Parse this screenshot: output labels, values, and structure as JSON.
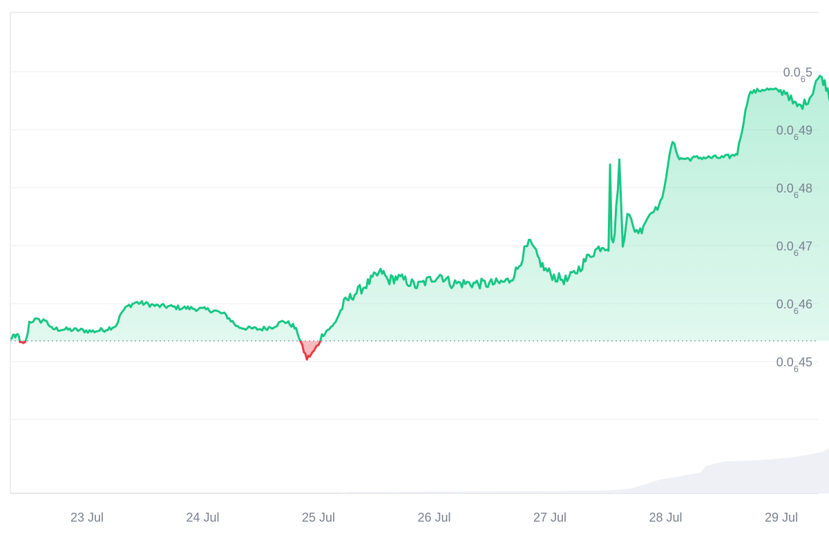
{
  "chart_data": {
    "type": "area",
    "title": "",
    "xlabel": "",
    "ylabel": "",
    "x_ticks": [
      "23 Jul",
      "24 Jul",
      "25 Jul",
      "26 Jul",
      "27 Jul",
      "28 Jul",
      "29 Jul"
    ],
    "y_ticks": [
      {
        "value": 4.5e-08,
        "prefix": "0.0",
        "sub": "6",
        "digits": "45"
      },
      {
        "value": 4.6e-08,
        "prefix": "0.0",
        "sub": "6",
        "digits": "46"
      },
      {
        "value": 4.7e-08,
        "prefix": "0.0",
        "sub": "6",
        "digits": "47"
      },
      {
        "value": 4.8e-08,
        "prefix": "0.0",
        "sub": "6",
        "digits": "48"
      },
      {
        "value": 4.9e-08,
        "prefix": "0.0",
        "sub": "6",
        "digits": "49"
      },
      {
        "value": 5e-08,
        "prefix": "0.0",
        "sub": "6",
        "digits": "5"
      }
    ],
    "y_axis_position": "right",
    "grid": true,
    "baseline_dotted": true,
    "colors": {
      "above_baseline": "#16c784",
      "below_baseline": "#ea3943",
      "volume": "#eef0f5",
      "grid": "#eeeeee",
      "axis": "#dddddd"
    }
  }
}
